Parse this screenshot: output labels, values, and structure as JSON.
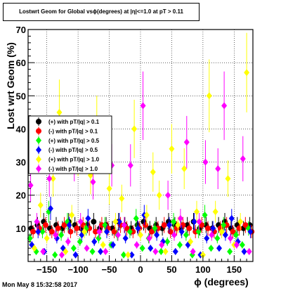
{
  "title": "Lostwrt Geom for Global vsϕ(degrees) at |η|<=1.0 at pT > 0.11",
  "timestamp": "Mon May  8 15:32:58 2017",
  "chart_data": {
    "type": "scatter",
    "xlabel": "ϕ (degrees)",
    "ylabel": "Lost wrt Geom (%)",
    "xlim": [
      -180,
      180
    ],
    "ylim": [
      0,
      70
    ],
    "xticks": [
      -150,
      -100,
      -50,
      0,
      50,
      100,
      150
    ],
    "yticks": [
      10,
      20,
      30,
      40,
      50,
      60,
      70
    ],
    "grid": true,
    "legend_position": "middle-left",
    "series": [
      {
        "name": "(+) with pT/|q| > 0.1",
        "color": "#000000",
        "marker": "circle",
        "x": [
          -175,
          -165,
          -155,
          -145,
          -135,
          -125,
          -115,
          -105,
          -95,
          -85,
          -75,
          -65,
          -55,
          -45,
          -35,
          -25,
          -15,
          -5,
          5,
          15,
          25,
          35,
          45,
          55,
          65,
          75,
          85,
          95,
          105,
          115,
          125,
          135,
          145,
          155,
          165,
          175
        ],
        "y": [
          10,
          11,
          12,
          10,
          11,
          10,
          12,
          11,
          10,
          11,
          12,
          10,
          11,
          10,
          12,
          11,
          10,
          11,
          12,
          10,
          11,
          10,
          12,
          11,
          10,
          11,
          12,
          10,
          11,
          10,
          11,
          12,
          10,
          11,
          10,
          11
        ]
      },
      {
        "name": "(-) with pT/|q| > 0.1",
        "color": "#ff0000",
        "marker": "circle",
        "x": [
          -172,
          -162,
          -152,
          -142,
          -132,
          -122,
          -112,
          -102,
          -92,
          -82,
          -72,
          -62,
          -52,
          -42,
          -32,
          -22,
          -12,
          -2,
          8,
          18,
          28,
          38,
          48,
          58,
          68,
          78,
          88,
          98,
          108,
          118,
          128,
          138,
          148,
          158,
          168,
          178
        ],
        "y": [
          9,
          10,
          11,
          9,
          10,
          11,
          9,
          10,
          11,
          10,
          9,
          11,
          10,
          9,
          11,
          10,
          9,
          10,
          11,
          9,
          10,
          11,
          9,
          10,
          11,
          10,
          9,
          11,
          10,
          9,
          10,
          11,
          9,
          10,
          11,
          9
        ]
      },
      {
        "name": "(+) with pT/|q| > 0.5",
        "color": "#00ff00",
        "marker": "diamond",
        "x": [
          -177,
          -167,
          -157,
          -147,
          -137,
          -127,
          -117,
          -107,
          -97,
          -87,
          -77,
          -67,
          -57,
          -47,
          -37,
          -27,
          -17,
          -7,
          3,
          13,
          23,
          33,
          43,
          53,
          63,
          73,
          83,
          93,
          103,
          113,
          123,
          133,
          143,
          153,
          163,
          173
        ],
        "y": [
          7,
          3,
          9,
          15,
          2,
          8,
          12,
          4,
          6,
          10,
          3,
          7,
          11,
          5,
          8,
          2,
          9,
          13,
          4,
          7,
          10,
          3,
          6,
          12,
          5,
          8,
          2,
          9,
          14,
          4,
          7,
          11,
          3,
          8,
          5,
          10
        ]
      },
      {
        "name": "(-) with pT/|q| > 0.5",
        "color": "#0000ff",
        "marker": "diamond",
        "x": [
          -174,
          -164,
          -154,
          -144,
          -134,
          -124,
          -114,
          -104,
          -94,
          -84,
          -74,
          -64,
          -54,
          -44,
          -34,
          -24,
          -14,
          -4,
          6,
          16,
          26,
          36,
          46,
          56,
          66,
          76,
          86,
          96,
          106,
          116,
          126,
          136,
          146,
          156,
          166,
          176
        ],
        "y": [
          5,
          9,
          3,
          16,
          7,
          4,
          11,
          2,
          8,
          13,
          6,
          3,
          9,
          5,
          12,
          7,
          2,
          10,
          14,
          4,
          8,
          6,
          11,
          3,
          9,
          5,
          12,
          2,
          7,
          10,
          4,
          8,
          13,
          6,
          3,
          9
        ]
      },
      {
        "name": "(+) with pT/|q| > 1.0",
        "color": "#ffff00",
        "marker": "diamond",
        "x": [
          -170,
          -160,
          -150,
          -140,
          -130,
          -120,
          -110,
          -100,
          -90,
          -80,
          -70,
          -60,
          -50,
          -40,
          -30,
          -20,
          -10,
          0,
          10,
          20,
          30,
          40,
          50,
          60,
          70,
          80,
          90,
          100,
          110,
          120,
          130,
          140,
          150,
          160,
          170
        ],
        "y": [
          4,
          17,
          7,
          25,
          45,
          3,
          14,
          33,
          9,
          26,
          41,
          5,
          22,
          12,
          19,
          2,
          40,
          8,
          14,
          27,
          20,
          3,
          34,
          11,
          28,
          6,
          15,
          2,
          50,
          15,
          9,
          25,
          5,
          12,
          57
        ]
      },
      {
        "name": "(-) with pT/|q| > 1.0",
        "color": "#ff00ff",
        "marker": "diamond",
        "x": [
          -176,
          -166,
          -156,
          -146,
          -136,
          -126,
          -116,
          -106,
          -96,
          -86,
          -76,
          -66,
          -56,
          -46,
          -36,
          -26,
          -16,
          -6,
          4,
          14,
          24,
          34,
          44,
          54,
          64,
          74,
          84,
          94,
          104,
          114,
          124,
          134,
          144,
          154,
          164,
          174
        ],
        "y": [
          23,
          12,
          3,
          25,
          8,
          2,
          6,
          31,
          12,
          4,
          24,
          9,
          3,
          29,
          8,
          11,
          29,
          5,
          47,
          7,
          3,
          5,
          20,
          8,
          13,
          36,
          3,
          12,
          30,
          8,
          28,
          47,
          7,
          5,
          31,
          3
        ]
      }
    ]
  }
}
